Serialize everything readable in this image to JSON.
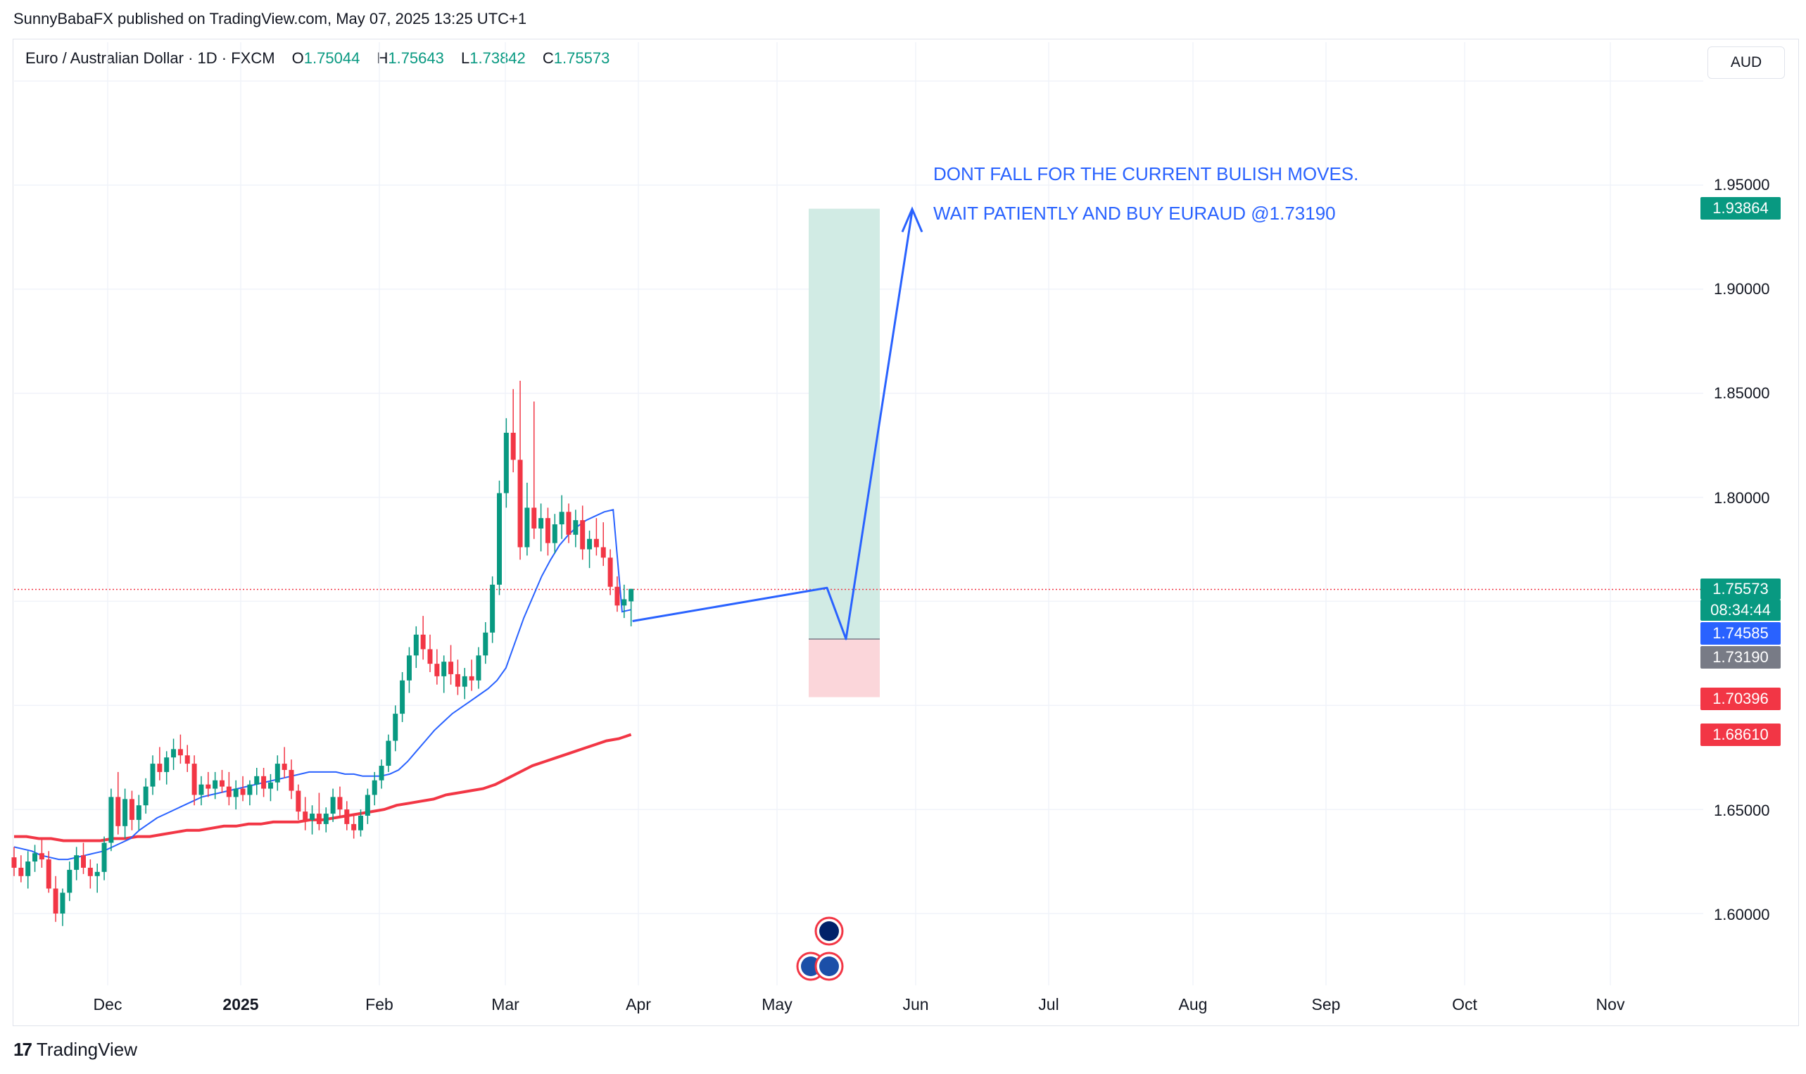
{
  "publish_line": "SunnyBabaFX published on TradingView.com, May 07, 2025 13:25 UTC+1",
  "header": {
    "symbol": "Euro / Australian Dollar · 1D · FXCM",
    "open_label": "O",
    "open": "1.75044",
    "high_label": "H",
    "high": "1.75643",
    "low_label": "L",
    "low": "1.73842",
    "close_label": "C",
    "close": "1.75573"
  },
  "currency_button": "AUD",
  "annotations": {
    "line1": "DONT FALL FOR THE CURRENT BULISH MOVES.",
    "line2": "WAIT PATIENTLY AND BUY EURAUD @1.73190"
  },
  "price_tags": {
    "target": "1.93864",
    "current": "1.75573",
    "countdown": "08:34:44",
    "ma_fast": "1.74585",
    "entry": "1.73190",
    "stop": "1.70396",
    "ma_slow": "1.68610"
  },
  "colors": {
    "up": "#089981",
    "down": "#f23645",
    "ma_fast": "#2962ff",
    "ma_slow": "#f23645",
    "target_zone": "#d1ebe4",
    "stop_zone": "#fbd6da",
    "entry_tag": "#787b86"
  },
  "chart_data": {
    "type": "candlestick",
    "y_axis_ticks": [
      "1.60000",
      "1.65000",
      "1.80000",
      "1.85000",
      "1.90000",
      "1.95000"
    ],
    "x_axis_ticks": [
      "Dec",
      "2025",
      "Feb",
      "Mar",
      "Apr",
      "May",
      "Jun",
      "Jul",
      "Aug",
      "Sep",
      "Oct",
      "Nov"
    ],
    "ylim": [
      1.56,
      2.0
    ],
    "last_price": 1.75573,
    "position": {
      "entry": 1.7319,
      "target": 1.93864,
      "stop": 1.70396
    },
    "candles": [
      [
        1.627,
        1.632,
        1.618,
        1.622
      ],
      [
        1.622,
        1.628,
        1.615,
        1.618
      ],
      [
        1.618,
        1.63,
        1.612,
        1.625
      ],
      [
        1.625,
        1.633,
        1.62,
        1.629
      ],
      [
        1.629,
        1.636,
        1.622,
        1.626
      ],
      [
        1.626,
        1.63,
        1.61,
        1.612
      ],
      [
        1.612,
        1.618,
        1.596,
        1.6
      ],
      [
        1.6,
        1.612,
        1.594,
        1.61
      ],
      [
        1.61,
        1.625,
        1.606,
        1.621
      ],
      [
        1.621,
        1.632,
        1.616,
        1.628
      ],
      [
        1.628,
        1.634,
        1.619,
        1.622
      ],
      [
        1.622,
        1.626,
        1.612,
        1.618
      ],
      [
        1.618,
        1.624,
        1.61,
        1.62
      ],
      [
        1.62,
        1.637,
        1.616,
        1.634
      ],
      [
        1.634,
        1.66,
        1.63,
        1.656
      ],
      [
        1.656,
        1.668,
        1.638,
        1.642
      ],
      [
        1.642,
        1.66,
        1.636,
        1.655
      ],
      [
        1.655,
        1.659,
        1.64,
        1.645
      ],
      [
        1.645,
        1.657,
        1.64,
        1.652
      ],
      [
        1.652,
        1.665,
        1.648,
        1.661
      ],
      [
        1.661,
        1.676,
        1.657,
        1.672
      ],
      [
        1.672,
        1.68,
        1.664,
        1.668
      ],
      [
        1.668,
        1.678,
        1.662,
        1.675
      ],
      [
        1.675,
        1.684,
        1.669,
        1.679
      ],
      [
        1.679,
        1.686,
        1.672,
        1.676
      ],
      [
        1.676,
        1.681,
        1.668,
        1.672
      ],
      [
        1.672,
        1.676,
        1.652,
        1.657
      ],
      [
        1.657,
        1.666,
        1.652,
        1.662
      ],
      [
        1.662,
        1.668,
        1.656,
        1.66
      ],
      [
        1.66,
        1.668,
        1.655,
        1.664
      ],
      [
        1.664,
        1.669,
        1.658,
        1.661
      ],
      [
        1.661,
        1.668,
        1.652,
        1.656
      ],
      [
        1.656,
        1.664,
        1.65,
        1.66
      ],
      [
        1.66,
        1.666,
        1.654,
        1.657
      ],
      [
        1.657,
        1.664,
        1.652,
        1.662
      ],
      [
        1.662,
        1.67,
        1.657,
        1.666
      ],
      [
        1.666,
        1.67,
        1.656,
        1.66
      ],
      [
        1.66,
        1.667,
        1.654,
        1.663
      ],
      [
        1.663,
        1.676,
        1.659,
        1.672
      ],
      [
        1.672,
        1.68,
        1.665,
        1.669
      ],
      [
        1.669,
        1.674,
        1.655,
        1.659
      ],
      [
        1.659,
        1.662,
        1.645,
        1.649
      ],
      [
        1.649,
        1.656,
        1.64,
        1.645
      ],
      [
        1.645,
        1.652,
        1.638,
        1.648
      ],
      [
        1.648,
        1.658,
        1.64,
        1.643
      ],
      [
        1.643,
        1.651,
        1.639,
        1.648
      ],
      [
        1.648,
        1.66,
        1.644,
        1.656
      ],
      [
        1.656,
        1.661,
        1.646,
        1.65
      ],
      [
        1.65,
        1.654,
        1.64,
        1.643
      ],
      [
        1.643,
        1.648,
        1.636,
        1.64
      ],
      [
        1.64,
        1.65,
        1.637,
        1.647
      ],
      [
        1.647,
        1.66,
        1.643,
        1.657
      ],
      [
        1.657,
        1.668,
        1.652,
        1.664
      ],
      [
        1.664,
        1.674,
        1.66,
        1.671
      ],
      [
        1.671,
        1.686,
        1.668,
        1.683
      ],
      [
        1.683,
        1.7,
        1.678,
        1.696
      ],
      [
        1.696,
        1.716,
        1.692,
        1.712
      ],
      [
        1.712,
        1.728,
        1.706,
        1.724
      ],
      [
        1.724,
        1.738,
        1.718,
        1.734
      ],
      [
        1.734,
        1.743,
        1.722,
        1.727
      ],
      [
        1.727,
        1.734,
        1.716,
        1.72
      ],
      [
        1.72,
        1.727,
        1.71,
        1.714
      ],
      [
        1.714,
        1.724,
        1.706,
        1.721
      ],
      [
        1.721,
        1.729,
        1.71,
        1.715
      ],
      [
        1.715,
        1.722,
        1.705,
        1.709
      ],
      [
        1.709,
        1.718,
        1.703,
        1.714
      ],
      [
        1.714,
        1.722,
        1.707,
        1.712
      ],
      [
        1.712,
        1.728,
        1.708,
        1.724
      ],
      [
        1.724,
        1.74,
        1.72,
        1.735
      ],
      [
        1.735,
        1.762,
        1.73,
        1.758
      ],
      [
        1.758,
        1.808,
        1.753,
        1.802
      ],
      [
        1.802,
        1.838,
        1.795,
        1.831
      ],
      [
        1.831,
        1.852,
        1.812,
        1.818
      ],
      [
        1.818,
        1.856,
        1.77,
        1.776
      ],
      [
        1.776,
        1.807,
        1.772,
        1.795
      ],
      [
        1.795,
        1.846,
        1.78,
        1.785
      ],
      [
        1.785,
        1.797,
        1.774,
        1.79
      ],
      [
        1.79,
        1.795,
        1.772,
        1.778
      ],
      [
        1.778,
        1.792,
        1.773,
        1.787
      ],
      [
        1.787,
        1.801,
        1.78,
        1.793
      ],
      [
        1.793,
        1.797,
        1.778,
        1.782
      ],
      [
        1.782,
        1.794,
        1.776,
        1.789
      ],
      [
        1.789,
        1.796,
        1.77,
        1.775
      ],
      [
        1.775,
        1.784,
        1.766,
        1.78
      ],
      [
        1.78,
        1.79,
        1.772,
        1.776
      ],
      [
        1.776,
        1.788,
        1.767,
        1.771
      ],
      [
        1.771,
        1.775,
        1.753,
        1.757
      ],
      [
        1.757,
        1.762,
        1.745,
        1.748
      ],
      [
        1.748,
        1.758,
        1.742,
        1.751
      ],
      [
        1.75,
        1.756,
        1.738,
        1.756
      ]
    ],
    "series": [
      {
        "values": [
          1.632,
          1.631,
          1.63,
          1.628,
          1.627,
          1.626,
          1.626,
          1.627,
          1.628,
          1.629,
          1.63,
          1.632,
          1.634,
          1.636,
          1.64,
          1.643,
          1.646,
          1.648,
          1.65,
          1.652,
          1.654,
          1.656,
          1.657,
          1.658,
          1.659,
          1.66,
          1.661,
          1.662,
          1.663,
          1.664,
          1.665,
          1.666,
          1.667,
          1.668,
          1.668,
          1.668,
          1.668,
          1.667,
          1.667,
          1.666,
          1.666,
          1.666,
          1.667,
          1.669,
          1.673,
          1.678,
          1.683,
          1.688,
          1.692,
          1.696,
          1.699,
          1.702,
          1.705,
          1.708,
          1.712,
          1.718,
          1.73,
          1.742,
          1.752,
          1.762,
          1.77,
          1.777,
          1.782,
          1.786,
          1.789,
          1.791,
          1.793,
          1.794,
          1.745,
          1.746
        ]
      },
      {
        "values": [
          1.637,
          1.637,
          1.636,
          1.636,
          1.635,
          1.635,
          1.635,
          1.635,
          1.636,
          1.636,
          1.637,
          1.637,
          1.638,
          1.639,
          1.64,
          1.64,
          1.641,
          1.642,
          1.642,
          1.643,
          1.643,
          1.644,
          1.644,
          1.644,
          1.645,
          1.645,
          1.646,
          1.647,
          1.648,
          1.649,
          1.65,
          1.652,
          1.653,
          1.654,
          1.655,
          1.657,
          1.658,
          1.659,
          1.66,
          1.662,
          1.665,
          1.668,
          1.671,
          1.673,
          1.675,
          1.677,
          1.679,
          1.681,
          1.683,
          1.684,
          1.686
        ]
      }
    ]
  }
}
